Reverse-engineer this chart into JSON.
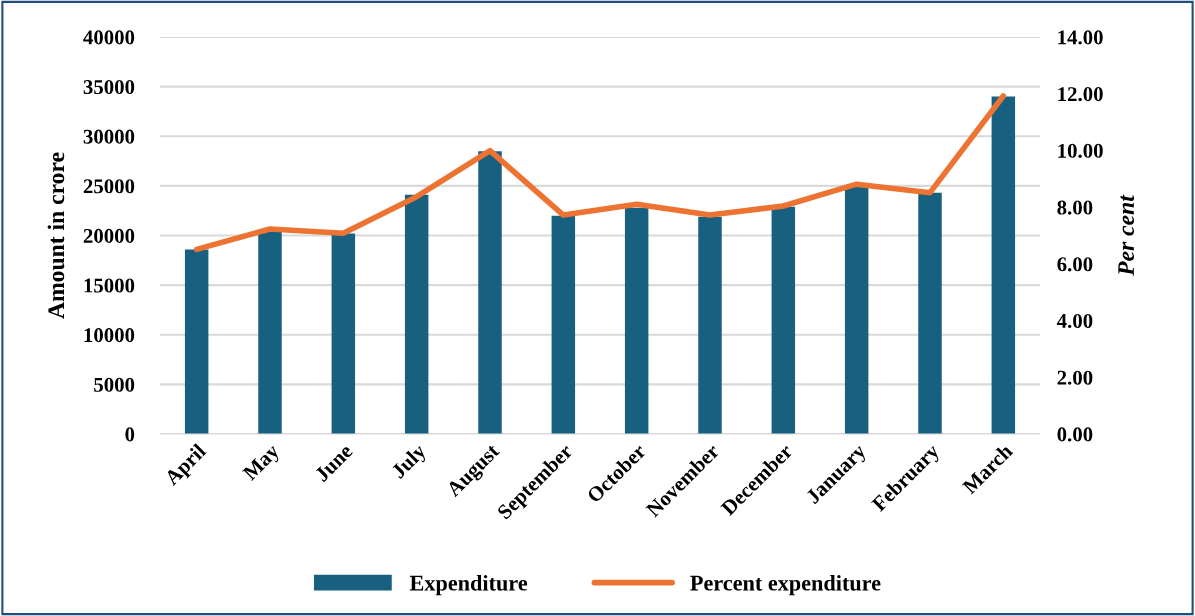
{
  "chart_data": {
    "type": "bar",
    "categories": [
      "April",
      "May",
      "June",
      "July",
      "August",
      "September",
      "October",
      "November",
      "December",
      "January",
      "February",
      "March"
    ],
    "series": [
      {
        "name": "Expenditure",
        "color": "#17607f",
        "values": [
          18600,
          20500,
          20200,
          24100,
          28500,
          22000,
          22800,
          21900,
          22900,
          24900,
          24300,
          34000
        ]
      },
      {
        "name": "Percent expenditure",
        "type": "line",
        "axis": "y2",
        "color": "#ed7332",
        "values": [
          6.51,
          7.23,
          7.08,
          8.37,
          9.99,
          7.72,
          8.1,
          7.72,
          8.04,
          8.81,
          8.51,
          11.92
        ]
      }
    ],
    "ylabel": "Amount in crore",
    "y2label": "Per cent",
    "ylim": [
      0,
      40000
    ],
    "yticks": [
      0,
      5000,
      10000,
      15000,
      20000,
      25000,
      30000,
      35000,
      40000
    ],
    "y2lim": [
      0,
      14
    ],
    "y2ticks": [
      {
        "value": 0,
        "label": "0.00"
      },
      {
        "value": 2,
        "label": "2.00"
      },
      {
        "value": 4,
        "label": "4.00"
      },
      {
        "value": 6,
        "label": "6.00"
      },
      {
        "value": 8,
        "label": "8.00"
      },
      {
        "value": 10,
        "label": "10.00"
      },
      {
        "value": 12,
        "label": "12.00"
      },
      {
        "value": 14,
        "label": "14.00"
      }
    ],
    "grid": "y",
    "legend": "bottom"
  }
}
